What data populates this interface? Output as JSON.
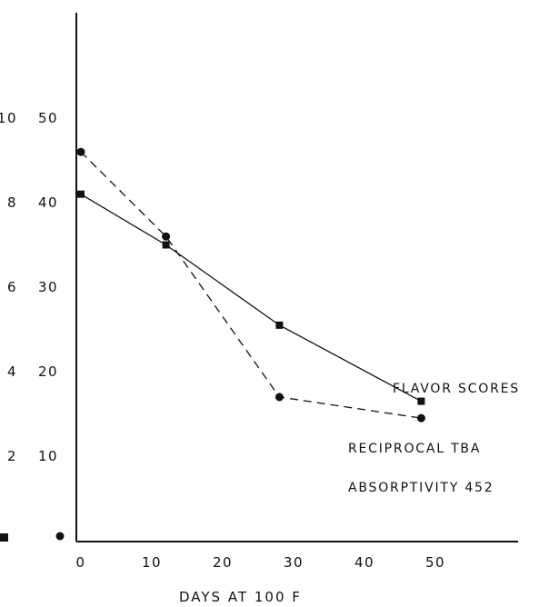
{
  "chart_data": {
    "type": "line",
    "xlabel": "DAYS AT 100 F",
    "x_ticks": [
      "0",
      "10",
      "20",
      "30",
      "40",
      "50"
    ],
    "xlim": [
      0,
      50
    ],
    "y_ticks_outer": [
      "2",
      "4",
      "6",
      "8",
      "10"
    ],
    "y_ticks_inner": [
      "10",
      "20",
      "30",
      "40",
      "50"
    ],
    "ylim_inner": [
      0,
      50
    ],
    "series": [
      {
        "name": "FLAVOR SCORES",
        "marker": "square",
        "style": "solid",
        "x": [
          0,
          12,
          28,
          48
        ],
        "y": [
          41,
          35,
          25.5,
          16.5
        ]
      },
      {
        "name": "RECIPROCAL TBA ABSORPTIVITY 452",
        "marker": "circle",
        "style": "dashed",
        "x": [
          0,
          12,
          28,
          48
        ],
        "y": [
          46,
          36,
          17,
          14.5
        ]
      }
    ],
    "annotations": {
      "flavor": "FLAVOR SCORES",
      "tba_line1": "RECIPROCAL TBA",
      "tba_line2": "ABSORPTIVITY 452"
    },
    "grid": false,
    "colors": {
      "ink": "#111111"
    }
  }
}
